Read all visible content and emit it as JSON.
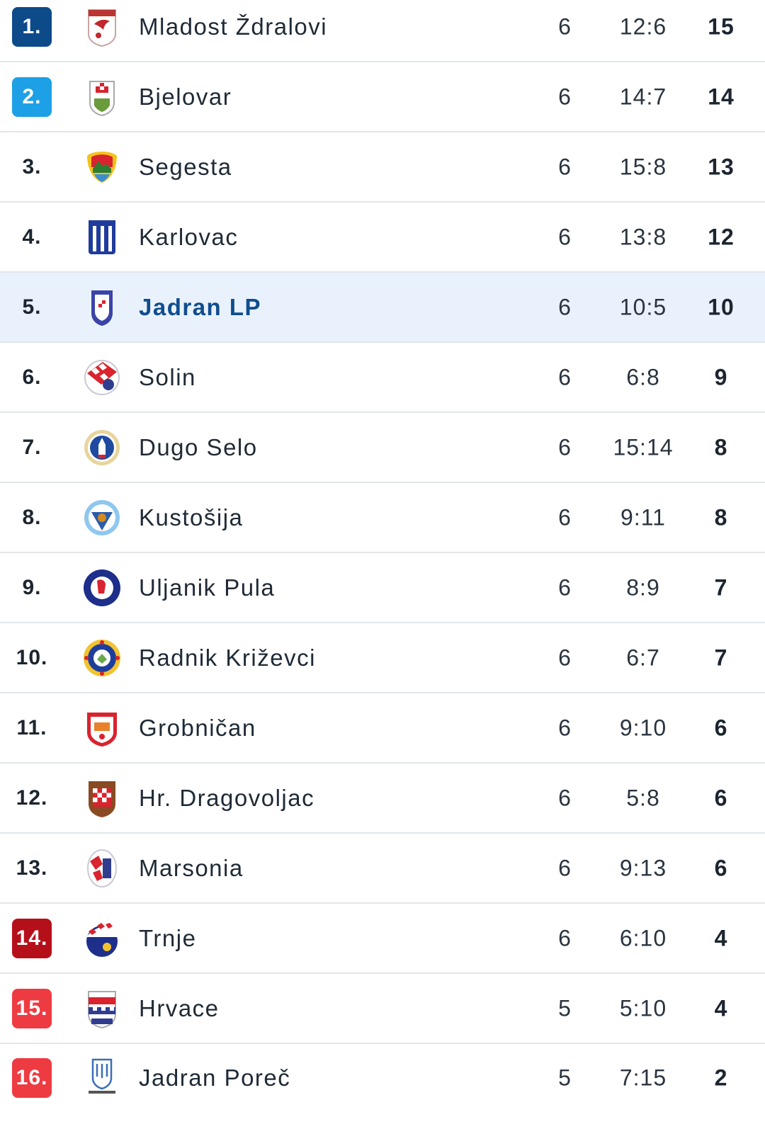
{
  "standings": {
    "rows": [
      {
        "rank": "1.",
        "team": "Mladost Ždralovi",
        "played": "6",
        "goals": "12:6",
        "points": "15",
        "rank_color": "#0d4a8a",
        "logo_icon": "mladost-zdralovi-crest-icon"
      },
      {
        "rank": "2.",
        "team": "Bjelovar",
        "played": "6",
        "goals": "14:7",
        "points": "14",
        "rank_color": "#1ea0e6",
        "logo_icon": "bjelovar-crest-icon"
      },
      {
        "rank": "3.",
        "team": "Segesta",
        "played": "6",
        "goals": "15:8",
        "points": "13",
        "rank_color": "",
        "logo_icon": "segesta-crest-icon"
      },
      {
        "rank": "4.",
        "team": "Karlovac",
        "played": "6",
        "goals": "13:8",
        "points": "12",
        "rank_color": "",
        "logo_icon": "karlovac-crest-icon"
      },
      {
        "rank": "5.",
        "team": "Jadran LP",
        "played": "6",
        "goals": "10:5",
        "points": "10",
        "rank_color": "",
        "logo_icon": "jadran-lp-crest-icon",
        "highlighted": true
      },
      {
        "rank": "6.",
        "team": "Solin",
        "played": "6",
        "goals": "6:8",
        "points": "9",
        "rank_color": "",
        "logo_icon": "solin-crest-icon"
      },
      {
        "rank": "7.",
        "team": "Dugo Selo",
        "played": "6",
        "goals": "15:14",
        "points": "8",
        "rank_color": "",
        "logo_icon": "dugo-selo-crest-icon"
      },
      {
        "rank": "8.",
        "team": "Kustošija",
        "played": "6",
        "goals": "9:11",
        "points": "8",
        "rank_color": "",
        "logo_icon": "kustosija-crest-icon"
      },
      {
        "rank": "9.",
        "team": "Uljanik Pula",
        "played": "6",
        "goals": "8:9",
        "points": "7",
        "rank_color": "",
        "logo_icon": "uljanik-pula-crest-icon"
      },
      {
        "rank": "10.",
        "team": "Radnik Križevci",
        "played": "6",
        "goals": "6:7",
        "points": "7",
        "rank_color": "",
        "logo_icon": "radnik-krizevci-crest-icon"
      },
      {
        "rank": "11.",
        "team": "Grobničan",
        "played": "6",
        "goals": "9:10",
        "points": "6",
        "rank_color": "",
        "logo_icon": "grobnican-crest-icon"
      },
      {
        "rank": "12.",
        "team": "Hr. Dragovoljac",
        "played": "6",
        "goals": "5:8",
        "points": "6",
        "rank_color": "",
        "logo_icon": "hr-dragovoljac-crest-icon"
      },
      {
        "rank": "13.",
        "team": "Marsonia",
        "played": "6",
        "goals": "9:13",
        "points": "6",
        "rank_color": "",
        "logo_icon": "marsonia-crest-icon"
      },
      {
        "rank": "14.",
        "team": "Trnje",
        "played": "6",
        "goals": "6:10",
        "points": "4",
        "rank_color": "#b5101a",
        "logo_icon": "trnje-crest-icon"
      },
      {
        "rank": "15.",
        "team": "Hrvace",
        "played": "5",
        "goals": "5:10",
        "points": "4",
        "rank_color": "#ee3b42",
        "logo_icon": "hrvace-crest-icon"
      },
      {
        "rank": "16.",
        "team": "Jadran Poreč",
        "played": "5",
        "goals": "7:15",
        "points": "2",
        "rank_color": "#ee3b42",
        "logo_icon": "jadran-porec-crest-icon"
      }
    ]
  }
}
